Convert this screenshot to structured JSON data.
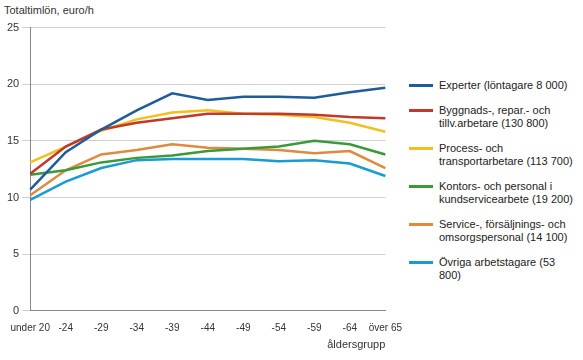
{
  "chart_data": {
    "type": "line",
    "y_label": "Totaltimlön, euro/h",
    "x_label": "åldersgrupp",
    "categories": [
      "under 20",
      "-24",
      "-29",
      "-34",
      "-39",
      "-44",
      "-49",
      "-54",
      "-59",
      "-64",
      "över 65"
    ],
    "series": [
      {
        "name": "Experter (löntagare 8 000)",
        "color": "#1f5c99",
        "values": [
          10.7,
          14.0,
          16.0,
          17.7,
          19.2,
          18.6,
          18.9,
          18.9,
          18.8,
          19.3,
          19.7
        ]
      },
      {
        "name": "Byggnads-, repar.- och tillv.arbetare (130 800)",
        "color": "#c0392b",
        "values": [
          12.1,
          14.5,
          16.0,
          16.6,
          17.0,
          17.4,
          17.4,
          17.4,
          17.3,
          17.1,
          17.0
        ]
      },
      {
        "name": "Process- och transportarbetare (113 700)",
        "color": "#f0c020",
        "values": [
          13.1,
          14.5,
          15.9,
          16.9,
          17.5,
          17.7,
          17.4,
          17.3,
          17.1,
          16.6,
          15.8
        ]
      },
      {
        "name": "Kontors- och personal i kundservicearbete (19 200)",
        "color": "#3a9a3a",
        "values": [
          12.0,
          12.4,
          13.1,
          13.5,
          13.7,
          14.1,
          14.3,
          14.5,
          15.0,
          14.7,
          13.8
        ]
      },
      {
        "name": "Service-, försäljnings- och omsorgspersonal (14 100)",
        "color": "#e08a40",
        "values": [
          10.2,
          12.4,
          13.8,
          14.2,
          14.7,
          14.4,
          14.3,
          14.2,
          13.9,
          14.1,
          12.6
        ]
      },
      {
        "name": "Övriga arbetstagare (53 800)",
        "color": "#1a9bd4",
        "values": [
          9.8,
          11.4,
          12.6,
          13.3,
          13.4,
          13.4,
          13.4,
          13.2,
          13.3,
          13.0,
          11.9
        ]
      }
    ],
    "ylim": [
      0,
      25
    ],
    "yticks": [
      0,
      5,
      10,
      15,
      20,
      25
    ],
    "grid": true,
    "legend": "right"
  }
}
